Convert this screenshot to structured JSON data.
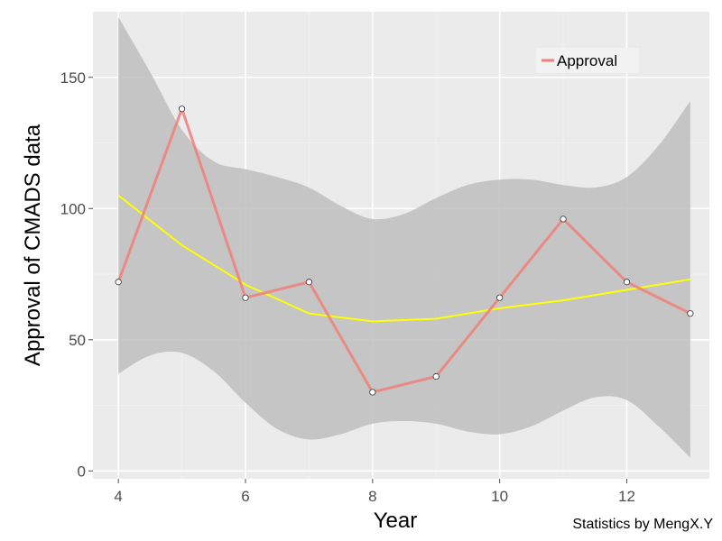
{
  "chart_data": {
    "type": "line",
    "title": "",
    "xlabel": "Year",
    "ylabel": "Approval  of  CMADS  data",
    "xlim": [
      3.6,
      13.3
    ],
    "ylim": [
      -3,
      175
    ],
    "x_ticks": [
      4,
      6,
      8,
      10,
      12
    ],
    "y_ticks": [
      0,
      50,
      100,
      150
    ],
    "grid": true,
    "legend_position": "top-right",
    "series": [
      {
        "name": "Approval",
        "color": "#f07f78",
        "x": [
          4,
          5,
          6,
          7,
          8,
          9,
          10,
          11,
          12,
          13
        ],
        "y": [
          72,
          138,
          66,
          72,
          30,
          36,
          66,
          96,
          72,
          60
        ]
      }
    ],
    "smooth_fit": {
      "color": "#ffff00",
      "x": [
        4,
        5,
        6,
        7,
        8,
        9,
        10,
        11,
        12,
        13
      ],
      "y": [
        105,
        86,
        71,
        60,
        57,
        58,
        62,
        65,
        69,
        73
      ]
    },
    "confidence_band": {
      "color": "#bebebe",
      "x": [
        4,
        4.5,
        5,
        5.5,
        6,
        6.5,
        7,
        7.5,
        8,
        8.5,
        9,
        9.5,
        10,
        10.5,
        11,
        11.5,
        12,
        12.5,
        13
      ],
      "upper": [
        173,
        152,
        130,
        118,
        115,
        112,
        108,
        101,
        96,
        98,
        104,
        109,
        111,
        111,
        109,
        108,
        112,
        124,
        141
      ],
      "lower": [
        37,
        44,
        45,
        38,
        26,
        16,
        12,
        14,
        18,
        19,
        18,
        15,
        14,
        17,
        23,
        28,
        27,
        17,
        5
      ]
    },
    "annotation": "Statistics by MengX.Y"
  }
}
